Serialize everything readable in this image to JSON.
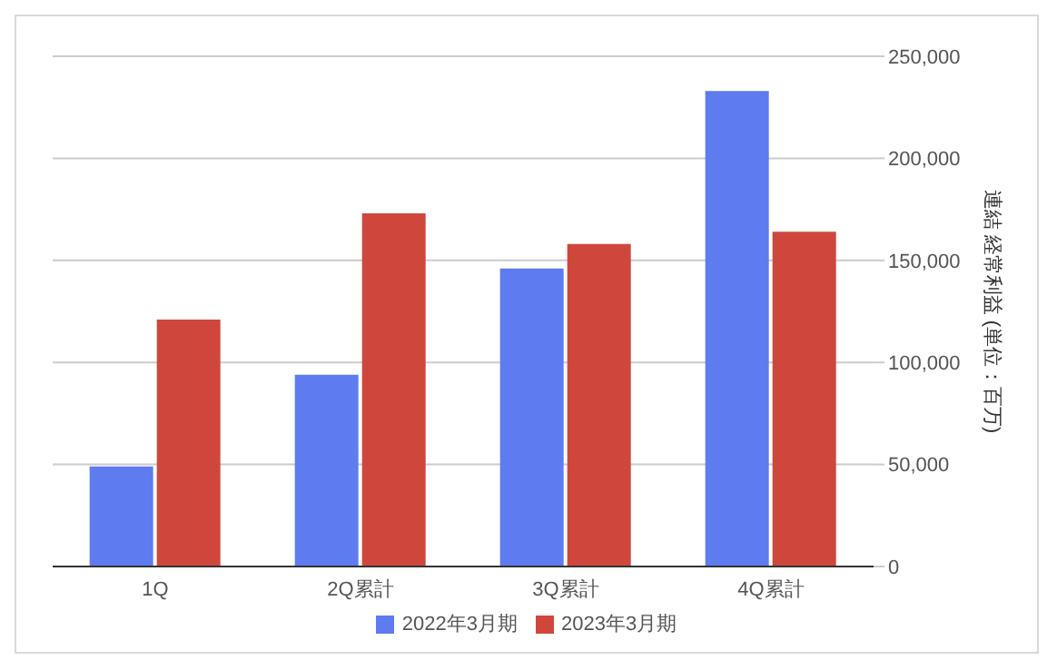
{
  "chart_data": {
    "type": "bar",
    "categories": [
      "1Q",
      "2Q累計",
      "3Q累計",
      "4Q累計"
    ],
    "series": [
      {
        "name": "2022年3月期",
        "color": "#5f7bf0",
        "values": [
          49000,
          94000,
          146000,
          233000
        ]
      },
      {
        "name": "2023年3月期",
        "color": "#cf473c",
        "values": [
          121000,
          173000,
          158000,
          164000
        ]
      }
    ],
    "ylabel": "連結 経常利益 (単位：百万)",
    "ylim": [
      0,
      250000
    ],
    "yticks": [
      {
        "value": 0,
        "label": "0"
      },
      {
        "value": 50000,
        "label": "50,000"
      },
      {
        "value": 100000,
        "label": "100,000"
      },
      {
        "value": 150000,
        "label": "150,000"
      },
      {
        "value": 200000,
        "label": "200,000"
      },
      {
        "value": 250000,
        "label": "250,000"
      }
    ],
    "grid": "y",
    "legend": "bottom"
  }
}
